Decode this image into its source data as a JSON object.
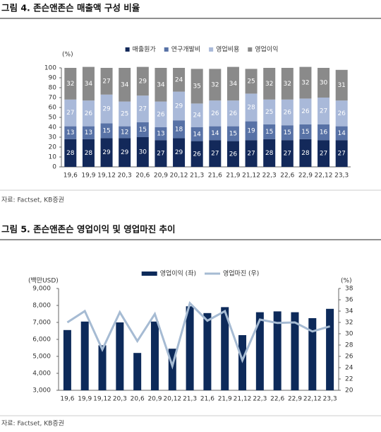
{
  "chart_data": [
    {
      "type": "bar",
      "stacked": true,
      "title": "그림 4. 존슨앤존슨 매출액 구성 비율",
      "ylabel": "(%)",
      "source": "자료: Factset, KB증권",
      "categories": [
        "19,6",
        "19,9",
        "19,12",
        "20,3",
        "20,6",
        "20,9",
        "20,12",
        "21,3",
        "21,6",
        "21,9",
        "21,12",
        "22,3",
        "22,6",
        "22,9",
        "22,12",
        "23,3"
      ],
      "series": [
        {
          "name": "매출원가",
          "color": "#13295a",
          "values": [
            28,
            28,
            29,
            29,
            30,
            27,
            29,
            26,
            27,
            26,
            27,
            28,
            27,
            28,
            27,
            27
          ]
        },
        {
          "name": "연구개발비",
          "color": "#5872a6",
          "values": [
            13,
            13,
            15,
            12,
            15,
            13,
            18,
            14,
            14,
            15,
            19,
            15,
            15,
            15,
            16,
            14
          ]
        },
        {
          "name": "영업비용",
          "color": "#a9b9d9",
          "values": [
            27,
            26,
            29,
            25,
            27,
            26,
            29,
            24,
            26,
            26,
            28,
            25,
            26,
            26,
            27,
            26
          ]
        },
        {
          "name": "영업이익",
          "color": "#8a8a8a",
          "values": [
            32,
            34,
            27,
            34,
            29,
            34,
            24,
            35,
            32,
            34,
            25,
            32,
            32,
            32,
            30,
            31
          ]
        }
      ],
      "ylim": [
        0,
        100
      ],
      "yticks": [
        0,
        10,
        20,
        30,
        40,
        50,
        60,
        70,
        80,
        90,
        100
      ]
    },
    {
      "type": "combo",
      "title": "그림 5. 존슨앤존슨 영업이익 및 영업마진 추이",
      "ylabel": "(백만USD)",
      "y2label": "(%)",
      "source": "자료: Factset, KB증권",
      "categories": [
        "19,6",
        "19,9",
        "19,12",
        "20,3",
        "20,6",
        "20,9",
        "20,12",
        "21,3",
        "21,6",
        "21,9",
        "21,12",
        "22,3",
        "22,6",
        "22,9",
        "22,12",
        "23,3"
      ],
      "series": [
        {
          "name": "영업이익 (좌)",
          "type": "bar",
          "color": "#0d2a5a",
          "values": [
            6550,
            7050,
            5650,
            7000,
            5200,
            7050,
            5450,
            7950,
            7550,
            7900,
            6250,
            7600,
            7650,
            7600,
            7250,
            7800
          ]
        },
        {
          "name": "영업마진 (우)",
          "type": "line",
          "axis": "y2",
          "color": "#a6bbd3",
          "values": [
            32.0,
            34.0,
            27.2,
            33.8,
            28.7,
            33.5,
            24.3,
            35.4,
            32.3,
            34.0,
            25.3,
            32.5,
            31.9,
            32.0,
            30.4,
            31.3
          ]
        }
      ],
      "ylim": [
        3000,
        9000
      ],
      "yticks": [
        {
          "value": 3000,
          "label": "3,000"
        },
        {
          "value": 4000,
          "label": "4,000"
        },
        {
          "value": 5000,
          "label": "5,000"
        },
        {
          "value": 6000,
          "label": "6,000"
        },
        {
          "value": 7000,
          "label": "7,000"
        },
        {
          "value": 8000,
          "label": "8,000"
        },
        {
          "value": 9000,
          "label": "9,000"
        }
      ],
      "y2lim": [
        20,
        38
      ],
      "y2ticks": [
        20,
        22,
        24,
        26,
        28,
        30,
        32,
        34,
        36,
        38
      ]
    }
  ]
}
